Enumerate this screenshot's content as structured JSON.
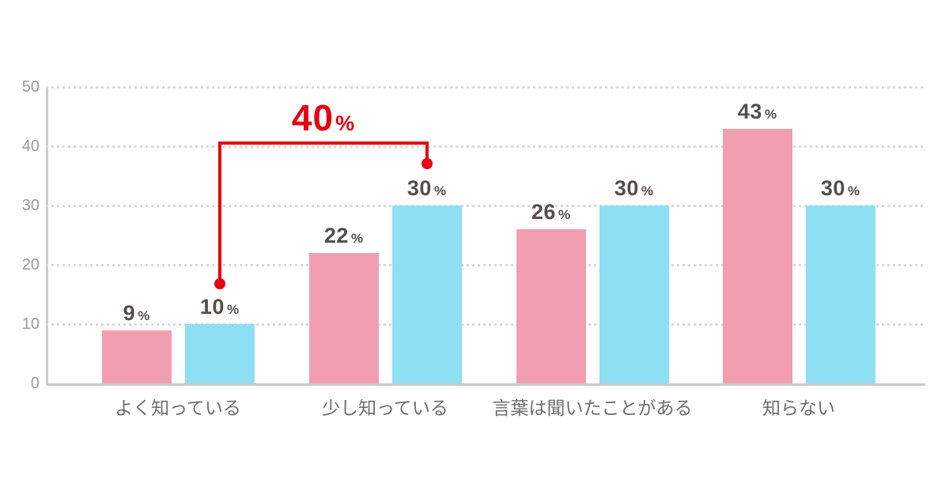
{
  "chart_data": {
    "type": "bar",
    "title": "",
    "categories": [
      "よく知っている",
      "少し知っている",
      "言葉は聞いたことがある",
      "知らない"
    ],
    "series": [
      {
        "name": "pink-series",
        "color": "#F19FB0",
        "values": [
          9,
          22,
          26,
          43
        ]
      },
      {
        "name": "blue-series",
        "color": "#8EDFF4",
        "values": [
          10,
          30,
          30,
          30
        ]
      }
    ],
    "value_suffix": "%",
    "xlabel": "",
    "ylabel": "",
    "ylim": [
      0,
      50
    ],
    "yticks": [
      "0",
      "10",
      "20",
      "30",
      "40",
      "50"
    ],
    "grid": "horizontal-dotted",
    "legend": "none",
    "annotation": {
      "label": "40",
      "suffix": "%",
      "color": "#E60012",
      "connects": [
        "blue-series よく知っている (10%)",
        "blue-series 少し知っている (30%)"
      ],
      "meaning": "combined 40%"
    }
  },
  "colors": {
    "background": "#FFFFFF",
    "axis": "#CCCCCC",
    "gridline": "#D8D8D8",
    "value_text": "#564E4A",
    "y_tick_text": "#9B9B9B",
    "x_label_text": "#6E6E6E",
    "annotation_red": "#E60012"
  }
}
